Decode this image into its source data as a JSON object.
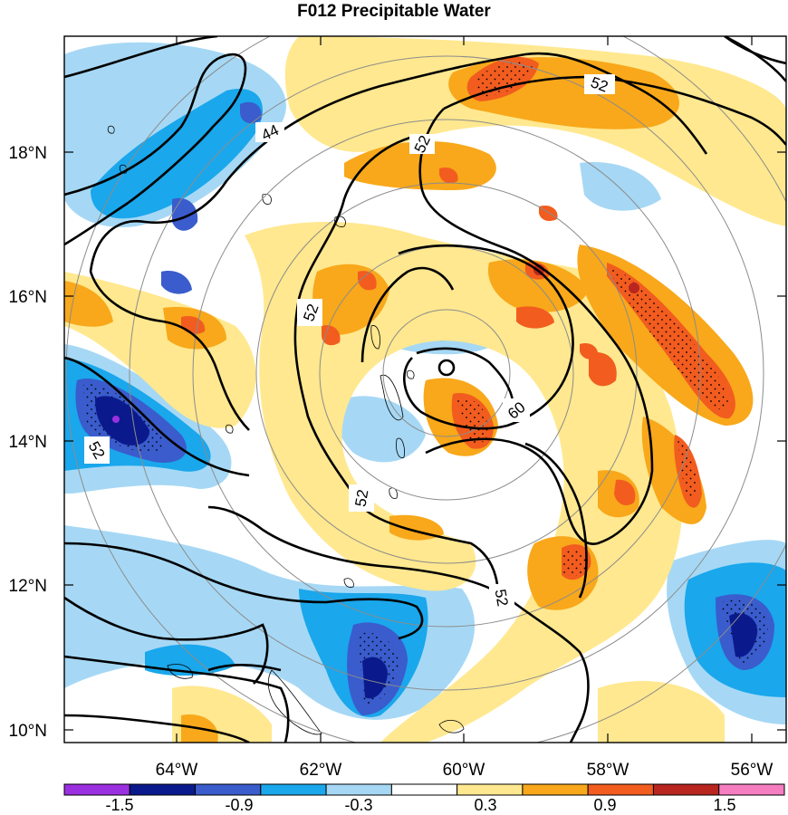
{
  "title": "F012 Precipitable Water",
  "lat_labels": [
    "18°N",
    "16°N",
    "14°N",
    "12°N",
    "10°N"
  ],
  "lon_labels": [
    "64°W",
    "62°W",
    "60°W",
    "58°W",
    "56°W"
  ],
  "contour_labels": [
    "44",
    "52",
    "52",
    "52",
    "52",
    "52",
    "52",
    "60"
  ],
  "colorbar": {
    "tick_labels": [
      "-1.5",
      "-0.9",
      "-0.3",
      "0.3",
      "0.9",
      "1.5"
    ],
    "colors": [
      "#9b30e0",
      "#0a1a8c",
      "#3a5ccc",
      "#1aa7ec",
      "#a6d8f5",
      "#ffffff",
      "#ffe88f",
      "#f8a81a",
      "#f25c1f",
      "#b8261f",
      "#f57dc0"
    ]
  },
  "colors": {
    "blue_light": "#a6d8f5",
    "blue_mid": "#1aa7ec",
    "blue_dark": "#3a5ccc",
    "navy": "#0a1a8c",
    "purple": "#9b30e0",
    "yellow": "#ffe88f",
    "orange": "#f8a81a",
    "red_orange": "#f25c1f",
    "dark_red": "#b8261f",
    "range_ring": "#8c8c8c"
  }
}
